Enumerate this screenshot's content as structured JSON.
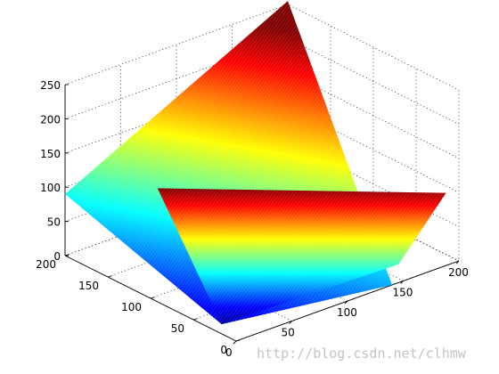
{
  "chart_data": {
    "type": "surface",
    "title": "",
    "xlabel": "",
    "ylabel": "",
    "zlabel": "",
    "grid": true,
    "colormap": "jet",
    "x_ticks": [
      0,
      50,
      100,
      150,
      200
    ],
    "y_ticks": [
      0,
      50,
      100,
      150,
      200
    ],
    "z_ticks": [
      0,
      50,
      100,
      150,
      200,
      250
    ],
    "xlim": [
      0,
      200
    ],
    "ylim": [
      0,
      200
    ],
    "zlim": [
      0,
      250
    ],
    "colors": {
      "jet": [
        "#00008f",
        "#0000ff",
        "#0080ff",
        "#00ffff",
        "#80ff80",
        "#ffff00",
        "#ff8000",
        "#ff0000",
        "#800000"
      ]
    },
    "surfaces": [
      {
        "name": "",
        "corners": [
          {
            "x": 0,
            "y": 200,
            "z": 90
          },
          {
            "x": 200,
            "y": 200,
            "z": 255
          },
          {
            "x": 140,
            "y": 0,
            "z": 0
          },
          {
            "x": 10,
            "y": 30,
            "z": 0
          }
        ]
      },
      {
        "name": "",
        "corners": [
          {
            "x": 10,
            "y": 30,
            "z": 0
          },
          {
            "x": 165,
            "y": 25,
            "z": 0
          },
          {
            "x": 200,
            "y": 15,
            "z": 90
          },
          {
            "x": 60,
            "y": 170,
            "z": 82
          }
        ]
      }
    ]
  },
  "watermark": "http://blog.csdn.net/clhmw"
}
